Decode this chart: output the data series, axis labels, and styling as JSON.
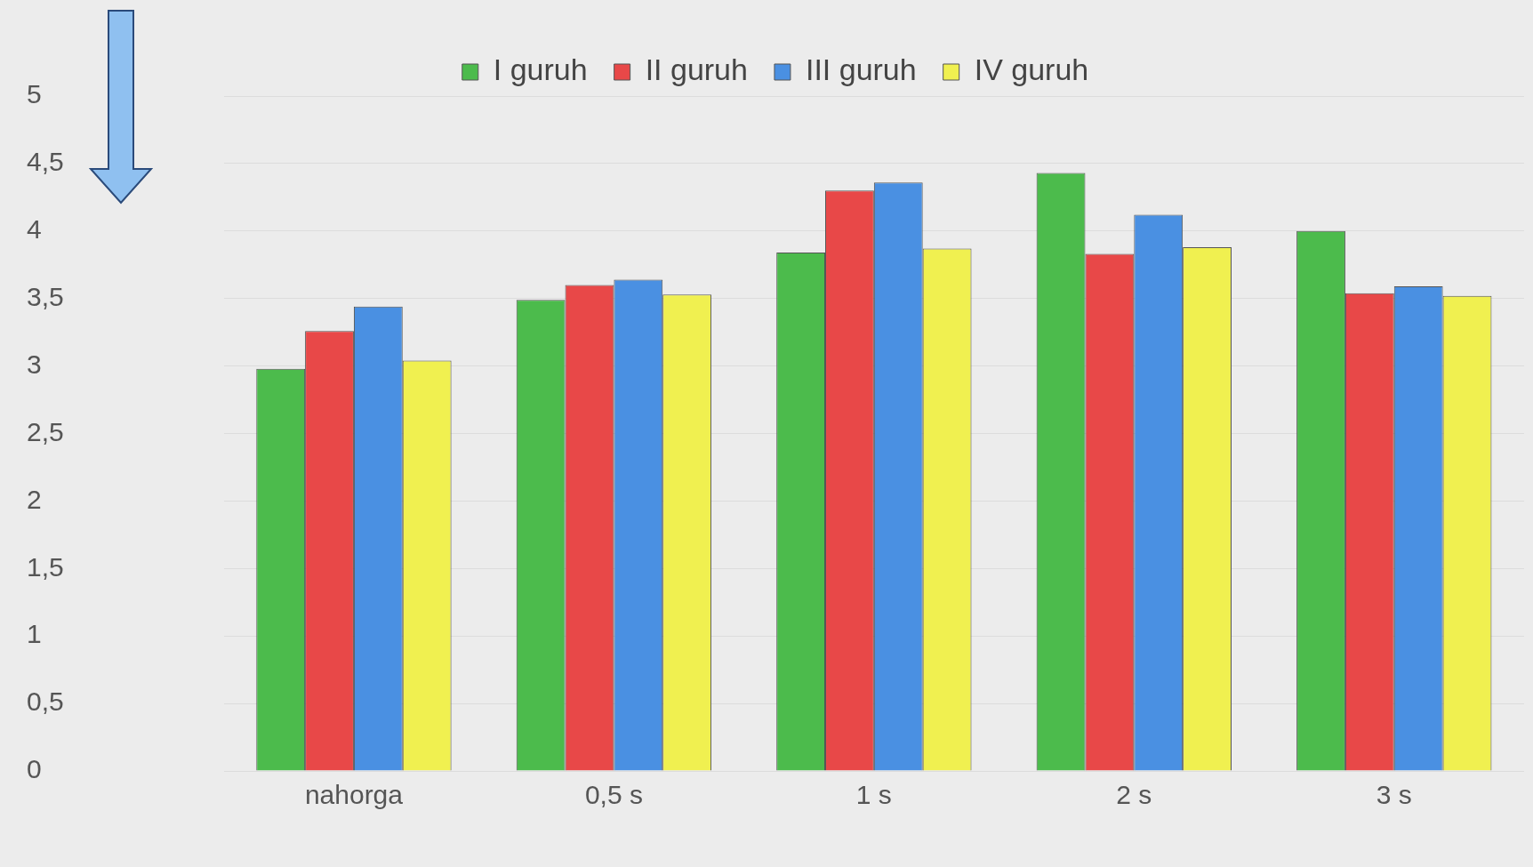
{
  "chart_data": {
    "type": "bar",
    "categories": [
      "nahorga",
      "0,5 s",
      "1 s",
      "2 s",
      "3 s"
    ],
    "series": [
      {
        "name": "I guruh",
        "color": "#4cbb4c",
        "values": [
          2.98,
          3.49,
          3.84,
          4.43,
          4.0
        ]
      },
      {
        "name": "II guruh",
        "color": "#e84848",
        "values": [
          3.26,
          3.6,
          4.3,
          3.83,
          3.54
        ]
      },
      {
        "name": "III guruh",
        "color": "#4a90e2",
        "values": [
          3.44,
          3.64,
          4.36,
          4.12,
          3.59
        ]
      },
      {
        "name": "IV guruh",
        "color": "#f0f050",
        "values": [
          3.04,
          3.53,
          3.87,
          3.88,
          3.52
        ]
      }
    ],
    "ylim": [
      0,
      5
    ],
    "yticks": [
      0,
      {
        "value": 0.5,
        "label": "0,5"
      },
      1,
      {
        "value": 1.5,
        "label": "1,5"
      },
      2,
      {
        "value": 2.5,
        "label": "2,5"
      },
      3,
      {
        "value": 3.5,
        "label": "3,5"
      },
      4,
      {
        "value": 4.5,
        "label": "4,5"
      },
      5
    ],
    "grid": "y",
    "legend": "top"
  }
}
